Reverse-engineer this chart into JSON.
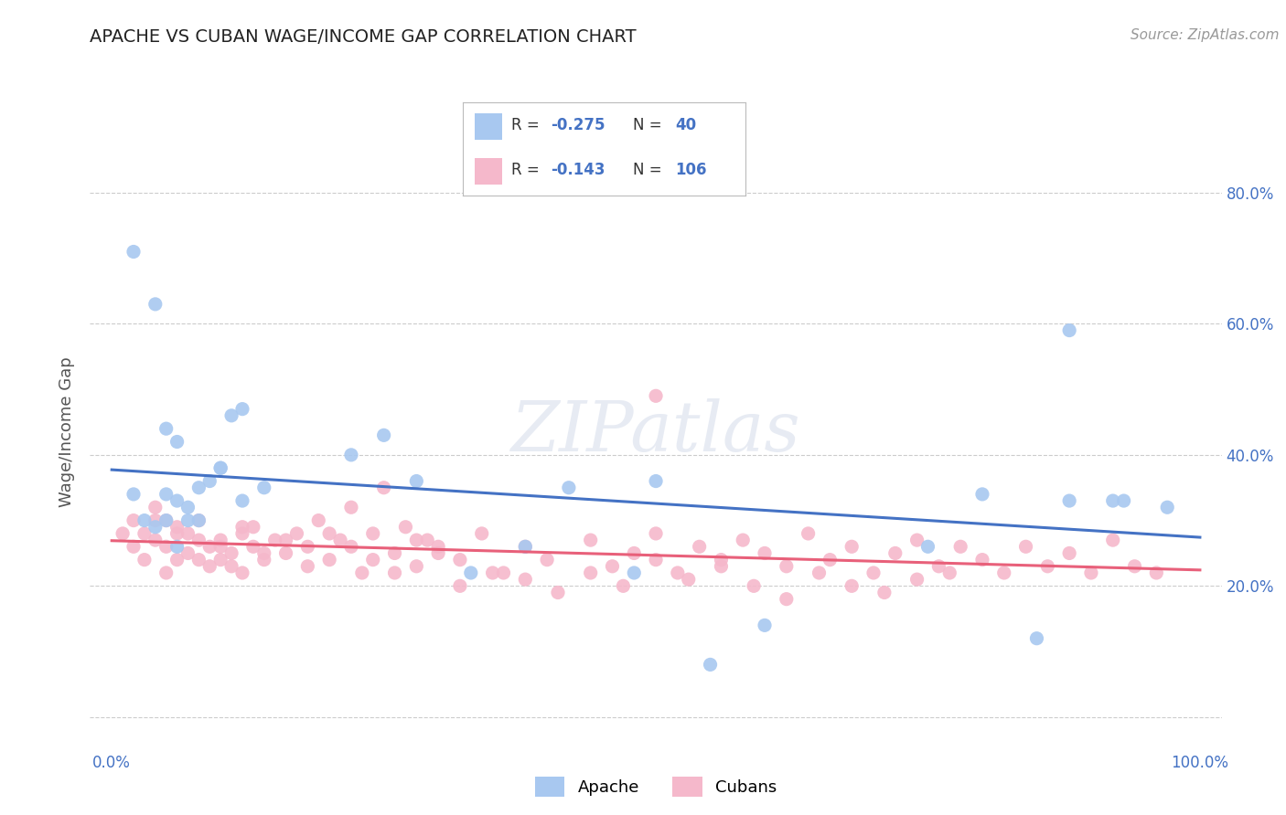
{
  "title": "APACHE VS CUBAN WAGE/INCOME GAP CORRELATION CHART",
  "source": "Source: ZipAtlas.com",
  "ylabel": "Wage/Income Gap",
  "watermark": "ZIPatlas",
  "apache_R": -0.275,
  "apache_N": 40,
  "cuban_R": -0.143,
  "cuban_N": 106,
  "apache_color": "#a8c8f0",
  "cuban_color": "#f5b8cb",
  "apache_line_color": "#4472c4",
  "cuban_line_color": "#e8607a",
  "background": "#ffffff",
  "grid_color": "#cccccc",
  "xlim": [
    -0.02,
    1.02
  ],
  "ylim": [
    -0.05,
    0.92
  ],
  "ytick_vals": [
    0.0,
    0.2,
    0.4,
    0.6,
    0.8
  ],
  "ytick_labels": [
    "",
    "20.0%",
    "40.0%",
    "60.0%",
    "80.0%"
  ],
  "apache_x": [
    0.02,
    0.03,
    0.04,
    0.05,
    0.05,
    0.06,
    0.06,
    0.07,
    0.07,
    0.08,
    0.09,
    0.1,
    0.11,
    0.12,
    0.02,
    0.14,
    0.04,
    0.06,
    0.08,
    0.1,
    0.22,
    0.25,
    0.28,
    0.05,
    0.33,
    0.38,
    0.42,
    0.12,
    0.48,
    0.5,
    0.55,
    0.6,
    0.88,
    0.92,
    0.75,
    0.8,
    0.85,
    0.88,
    0.93,
    0.97
  ],
  "apache_y": [
    0.34,
    0.3,
    0.29,
    0.34,
    0.3,
    0.33,
    0.26,
    0.32,
    0.3,
    0.35,
    0.36,
    0.38,
    0.46,
    0.33,
    0.71,
    0.35,
    0.63,
    0.42,
    0.3,
    0.38,
    0.4,
    0.43,
    0.36,
    0.44,
    0.22,
    0.26,
    0.35,
    0.47,
    0.22,
    0.36,
    0.08,
    0.14,
    0.59,
    0.33,
    0.26,
    0.34,
    0.12,
    0.33,
    0.33,
    0.32
  ],
  "cuban_x": [
    0.01,
    0.02,
    0.02,
    0.03,
    0.03,
    0.04,
    0.04,
    0.05,
    0.05,
    0.05,
    0.06,
    0.06,
    0.07,
    0.07,
    0.08,
    0.08,
    0.09,
    0.09,
    0.1,
    0.1,
    0.11,
    0.11,
    0.12,
    0.12,
    0.13,
    0.13,
    0.14,
    0.15,
    0.16,
    0.17,
    0.18,
    0.19,
    0.2,
    0.21,
    0.22,
    0.23,
    0.24,
    0.25,
    0.26,
    0.27,
    0.28,
    0.29,
    0.3,
    0.32,
    0.34,
    0.36,
    0.38,
    0.4,
    0.5,
    0.44,
    0.46,
    0.48,
    0.5,
    0.52,
    0.54,
    0.56,
    0.58,
    0.6,
    0.62,
    0.64,
    0.66,
    0.68,
    0.7,
    0.72,
    0.74,
    0.76,
    0.78,
    0.8,
    0.82,
    0.84,
    0.86,
    0.88,
    0.9,
    0.92,
    0.94,
    0.96,
    0.04,
    0.06,
    0.08,
    0.1,
    0.12,
    0.14,
    0.16,
    0.18,
    0.2,
    0.22,
    0.24,
    0.26,
    0.28,
    0.3,
    0.32,
    0.35,
    0.38,
    0.41,
    0.44,
    0.47,
    0.5,
    0.53,
    0.56,
    0.59,
    0.62,
    0.65,
    0.68,
    0.71,
    0.74,
    0.77
  ],
  "cuban_y": [
    0.28,
    0.26,
    0.3,
    0.24,
    0.28,
    0.27,
    0.3,
    0.22,
    0.26,
    0.3,
    0.24,
    0.29,
    0.25,
    0.28,
    0.24,
    0.27,
    0.23,
    0.26,
    0.24,
    0.27,
    0.23,
    0.25,
    0.28,
    0.22,
    0.26,
    0.29,
    0.24,
    0.27,
    0.25,
    0.28,
    0.26,
    0.3,
    0.24,
    0.27,
    0.32,
    0.22,
    0.28,
    0.35,
    0.25,
    0.29,
    0.23,
    0.27,
    0.26,
    0.24,
    0.28,
    0.22,
    0.26,
    0.24,
    0.49,
    0.27,
    0.23,
    0.25,
    0.28,
    0.22,
    0.26,
    0.24,
    0.27,
    0.25,
    0.23,
    0.28,
    0.24,
    0.26,
    0.22,
    0.25,
    0.27,
    0.23,
    0.26,
    0.24,
    0.22,
    0.26,
    0.23,
    0.25,
    0.22,
    0.27,
    0.23,
    0.22,
    0.32,
    0.28,
    0.3,
    0.26,
    0.29,
    0.25,
    0.27,
    0.23,
    0.28,
    0.26,
    0.24,
    0.22,
    0.27,
    0.25,
    0.2,
    0.22,
    0.21,
    0.19,
    0.22,
    0.2,
    0.24,
    0.21,
    0.23,
    0.2,
    0.18,
    0.22,
    0.2,
    0.19,
    0.21,
    0.22
  ],
  "legend_text_color": "#4472c4",
  "legend_label_color": "#333333",
  "tick_label_color": "#4472c4",
  "title_fontsize": 14,
  "source_fontsize": 11,
  "tick_fontsize": 12,
  "marker_size": 120,
  "line_width": 2.2
}
